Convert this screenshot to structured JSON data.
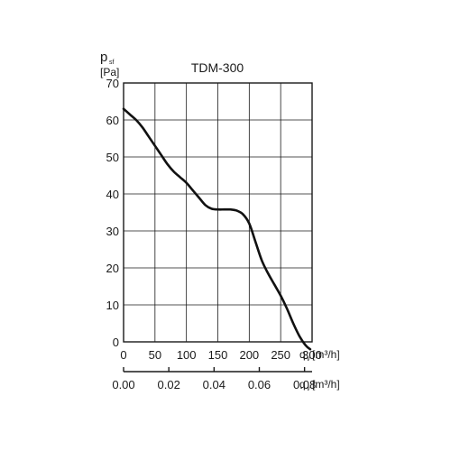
{
  "chart_data": {
    "type": "line",
    "title": "TDM-300",
    "ylabel": {
      "main": "p",
      "sub": "sf",
      "unit": "[Pa]"
    },
    "xlabel": {
      "main": "q",
      "sub": "v",
      "unit": "[m³/h]"
    },
    "x2label": {
      "main": "q",
      "sub": "v",
      "unit": "[m³/h]"
    },
    "xlim": [
      0,
      300
    ],
    "ylim": [
      0,
      70
    ],
    "x_ticks": [
      0,
      50,
      100,
      150,
      200,
      250,
      300
    ],
    "y_ticks": [
      0,
      10,
      20,
      30,
      40,
      50,
      60,
      70
    ],
    "x_tick_labels": [
      "0",
      "50",
      "100",
      "150",
      "200",
      "250",
      "300"
    ],
    "y_tick_labels": [
      "0",
      "10",
      "20",
      "30",
      "40",
      "50",
      "60",
      "70"
    ],
    "x2_ticks": [
      0,
      0.02,
      0.04,
      0.06,
      0.08
    ],
    "x2_tick_labels": [
      "0.00",
      "0.02",
      "0.04",
      "0.06",
      "0.08"
    ],
    "x2_unit_factor": 3600,
    "grid": true,
    "series": [
      {
        "x": [
          0,
          10,
          20,
          30,
          40,
          50,
          60,
          70,
          80,
          90,
          100,
          110,
          120,
          130,
          140,
          150,
          160,
          170,
          180,
          190,
          200,
          210,
          220,
          230,
          240,
          250,
          260,
          270,
          280,
          290,
          297
        ],
        "y": [
          63,
          61.5,
          60,
          58,
          55.5,
          53,
          50.5,
          48,
          46,
          44.5,
          43,
          41,
          39,
          37,
          36,
          35.8,
          35.8,
          35.8,
          35.5,
          34.5,
          32,
          27,
          22,
          18.5,
          15.5,
          12.5,
          9,
          5,
          1.5,
          -1,
          -2
        ]
      }
    ]
  }
}
